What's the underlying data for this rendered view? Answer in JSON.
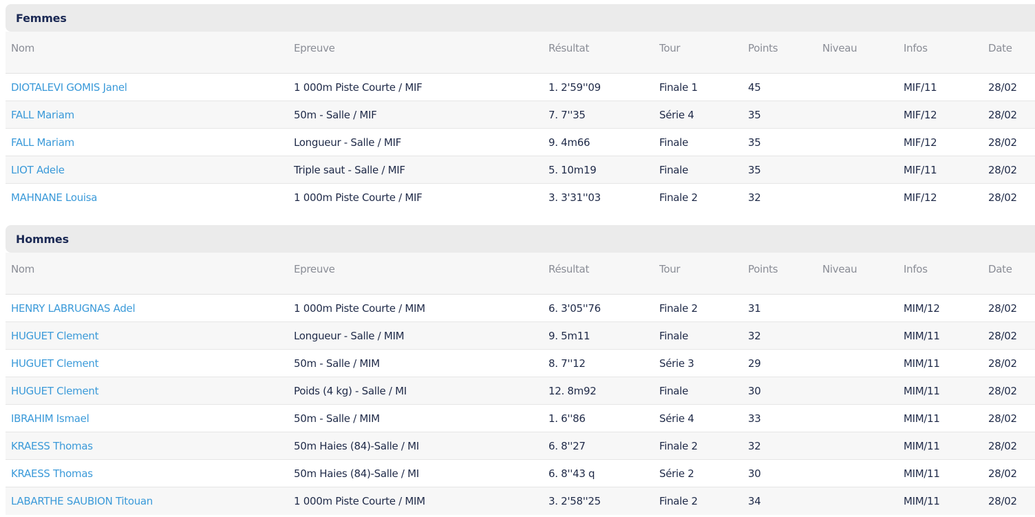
{
  "columns": {
    "nom": "Nom",
    "epreuve": "Epreuve",
    "resultat": "Résultat",
    "tour": "Tour",
    "points": "Points",
    "niveau": "Niveau",
    "infos": "Infos",
    "date": "Date"
  },
  "femmes": {
    "title": "Femmes",
    "rows": [
      {
        "nom": "DIOTALEVI GOMIS Janel",
        "epreuve": "1 000m Piste Courte / MIF",
        "resultat": "1. 2'59''09",
        "tour": "Finale 1",
        "points": "45",
        "niveau": "",
        "infos": "MIF/11",
        "date": "28/02"
      },
      {
        "nom": "FALL Mariam",
        "epreuve": "50m - Salle / MIF",
        "resultat": "7. 7''35",
        "tour": "Série 4",
        "points": "35",
        "niveau": "",
        "infos": "MIF/12",
        "date": "28/02"
      },
      {
        "nom": "FALL Mariam",
        "epreuve": "Longueur - Salle / MIF",
        "resultat": "9. 4m66",
        "tour": "Finale",
        "points": "35",
        "niveau": "",
        "infos": "MIF/12",
        "date": "28/02"
      },
      {
        "nom": "LIOT Adele",
        "epreuve": "Triple saut - Salle / MIF",
        "resultat": "5. 10m19",
        "tour": "Finale",
        "points": "35",
        "niveau": "",
        "infos": "MIF/11",
        "date": "28/02"
      },
      {
        "nom": "MAHNANE Louisa",
        "epreuve": "1 000m Piste Courte / MIF",
        "resultat": "3. 3'31''03",
        "tour": "Finale 2",
        "points": "32",
        "niveau": "",
        "infos": "MIF/12",
        "date": "28/02"
      }
    ]
  },
  "hommes": {
    "title": "Hommes",
    "rows": [
      {
        "nom": "HENRY LABRUGNAS Adel",
        "epreuve": "1 000m Piste Courte / MIM",
        "resultat": "6. 3'05''76",
        "tour": "Finale 2",
        "points": "31",
        "niveau": "",
        "infos": "MIM/12",
        "date": "28/02"
      },
      {
        "nom": "HUGUET Clement",
        "epreuve": "Longueur - Salle / MIM",
        "resultat": "9. 5m11",
        "tour": "Finale",
        "points": "32",
        "niveau": "",
        "infos": "MIM/11",
        "date": "28/02"
      },
      {
        "nom": "HUGUET Clement",
        "epreuve": "50m - Salle / MIM",
        "resultat": "8. 7''12",
        "tour": "Série 3",
        "points": "29",
        "niveau": "",
        "infos": "MIM/11",
        "date": "28/02"
      },
      {
        "nom": "HUGUET Clement",
        "epreuve": "Poids (4 kg) - Salle / MI",
        "resultat": "12. 8m92",
        "tour": "Finale",
        "points": "30",
        "niveau": "",
        "infos": "MIM/11",
        "date": "28/02"
      },
      {
        "nom": "IBRAHIM Ismael",
        "epreuve": "50m - Salle / MIM",
        "resultat": "1. 6''86",
        "tour": "Série 4",
        "points": "33",
        "niveau": "",
        "infos": "MIM/11",
        "date": "28/02"
      },
      {
        "nom": "KRAESS Thomas",
        "epreuve": "50m Haies (84)-Salle / MI",
        "resultat": "6. 8''27",
        "tour": "Finale 2",
        "points": "32",
        "niveau": "",
        "infos": "MIM/11",
        "date": "28/02"
      },
      {
        "nom": "KRAESS Thomas",
        "epreuve": "50m Haies (84)-Salle / MI",
        "resultat": "6. 8''43 q",
        "tour": "Série 2",
        "points": "30",
        "niveau": "",
        "infos": "MIM/11",
        "date": "28/02"
      },
      {
        "nom": "LABARTHE SAUBION Titouan",
        "epreuve": "1 000m Piste Courte / MIM",
        "resultat": "3. 2'58''25",
        "tour": "Finale 2",
        "points": "34",
        "niveau": "",
        "infos": "MIM/11",
        "date": "28/02"
      }
    ]
  },
  "colors": {
    "link": "#3b9ad9",
    "header_bg": "#ebebeb",
    "title": "#1c2a55",
    "muted": "#8a8d96"
  }
}
